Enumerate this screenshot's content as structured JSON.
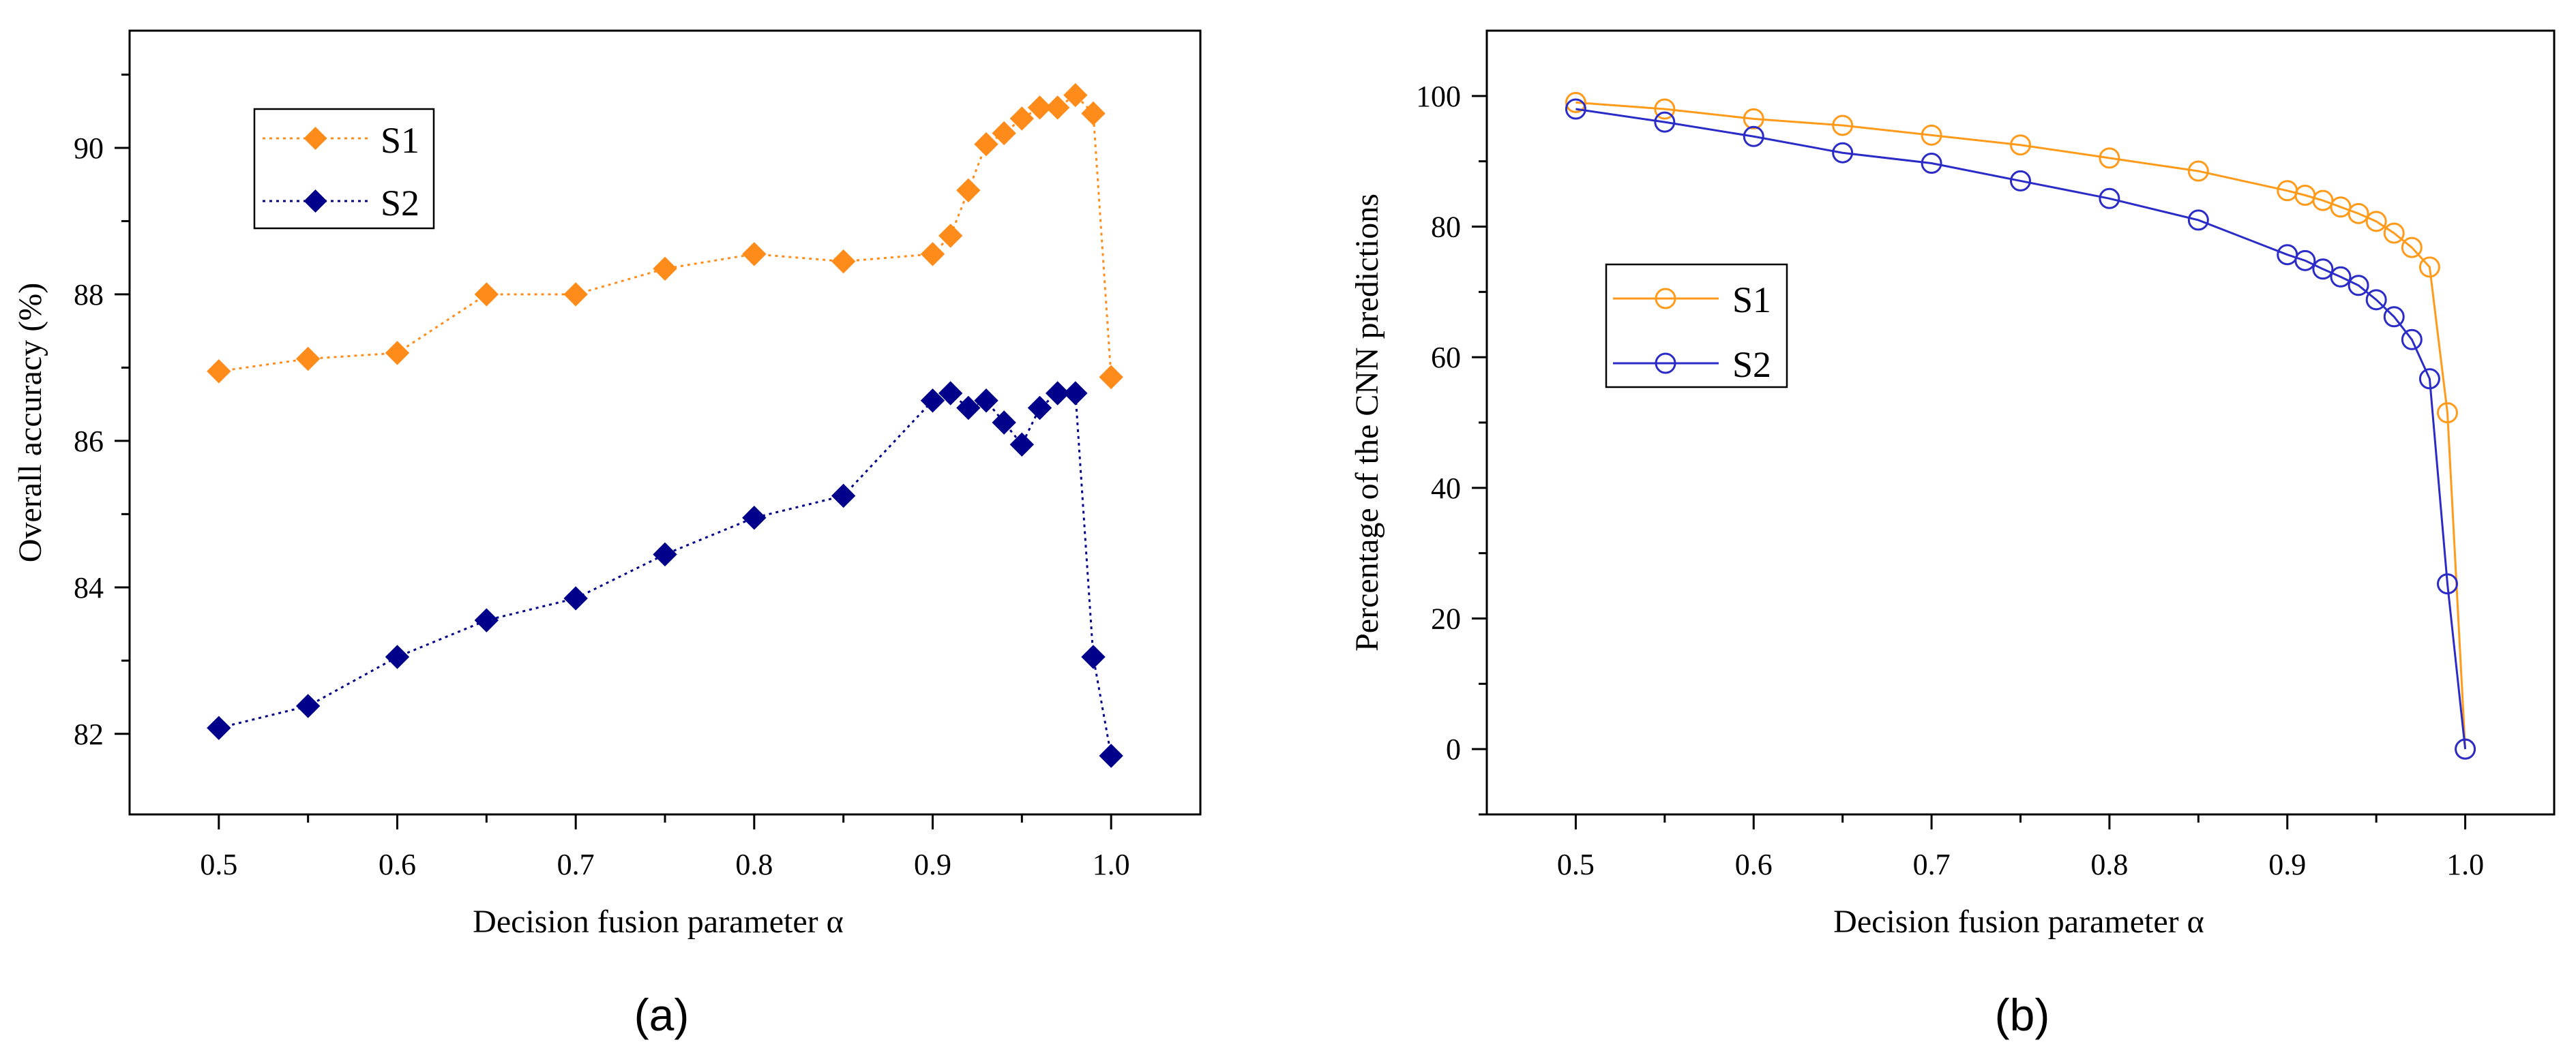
{
  "chart_data": [
    {
      "type": "scatter",
      "panel_label": "(a)",
      "xlabel": "Decision fusion parameter α",
      "ylabel": "Overall accuracy (%)",
      "xlim": [
        0.45,
        1.05
      ],
      "ylim": [
        80.9,
        91.6
      ],
      "xticks": [
        0.5,
        0.6,
        0.7,
        0.8,
        0.9,
        1.0
      ],
      "xtick_labels": [
        "0.5",
        "0.6",
        "0.7",
        "0.8",
        "0.9",
        "1.0"
      ],
      "xminor": [
        0.55,
        0.65,
        0.75,
        0.85,
        0.95
      ],
      "yticks": [
        82,
        84,
        86,
        88,
        90
      ],
      "ytick_labels": [
        "82",
        "84",
        "86",
        "88",
        "90"
      ],
      "yminor": [
        83,
        85,
        87,
        89,
        91
      ],
      "grid": false,
      "legend_position": "top-left",
      "x": [
        0.5,
        0.55,
        0.6,
        0.65,
        0.7,
        0.75,
        0.8,
        0.85,
        0.9,
        0.91,
        0.92,
        0.93,
        0.94,
        0.95,
        0.96,
        0.97,
        0.98,
        0.99,
        1.0
      ],
      "series": [
        {
          "name": "S1",
          "color": "#FF8C1A",
          "marker": "diamond",
          "line_style": "dotted",
          "values": [
            86.95,
            87.12,
            87.2,
            88.0,
            88.0,
            88.35,
            88.55,
            88.45,
            88.55,
            88.8,
            89.42,
            90.05,
            90.2,
            90.4,
            90.55,
            90.55,
            90.72,
            90.47,
            86.87
          ]
        },
        {
          "name": "S2",
          "color": "#00008B",
          "marker": "diamond",
          "line_style": "dotted",
          "values": [
            82.08,
            82.38,
            83.05,
            83.55,
            83.85,
            84.45,
            84.95,
            85.25,
            86.55,
            86.65,
            86.45,
            86.55,
            86.25,
            85.95,
            86.45,
            86.65,
            86.65,
            83.05,
            81.7
          ]
        }
      ]
    },
    {
      "type": "line",
      "panel_label": "(b)",
      "xlabel": "Decision fusion parameter α",
      "ylabel": "Percentage of the CNN predictions",
      "xlim": [
        0.45,
        1.05
      ],
      "ylim": [
        -10,
        110
      ],
      "xticks": [
        0.5,
        0.6,
        0.7,
        0.8,
        0.9,
        1.0
      ],
      "xtick_labels": [
        "0.5",
        "0.6",
        "0.7",
        "0.8",
        "0.9",
        "1.0"
      ],
      "xminor": [
        0.55,
        0.65,
        0.75,
        0.85,
        0.95
      ],
      "yticks": [
        0,
        20,
        40,
        60,
        80,
        100
      ],
      "ytick_labels": [
        "0",
        "20",
        "40",
        "60",
        "80",
        "100"
      ],
      "yminor": [
        -10,
        10,
        30,
        50,
        70,
        90
      ],
      "grid": false,
      "legend_position": "center-left",
      "x": [
        0.5,
        0.55,
        0.6,
        0.65,
        0.7,
        0.75,
        0.8,
        0.85,
        0.9,
        0.91,
        0.92,
        0.93,
        0.94,
        0.95,
        0.96,
        0.97,
        0.98,
        0.99,
        1.0
      ],
      "series": [
        {
          "name": "S1",
          "color": "#FF9A1A",
          "marker": "open-circle",
          "line_style": "solid",
          "values": [
            99.0,
            98.0,
            96.5,
            95.5,
            94.0,
            92.5,
            90.5,
            88.5,
            85.5,
            84.8,
            84.0,
            83.0,
            82.0,
            80.8,
            79.0,
            76.8,
            73.8,
            51.5,
            0
          ]
        },
        {
          "name": "S2",
          "color": "#2B2BC8",
          "marker": "open-circle",
          "line_style": "solid",
          "values": [
            98.0,
            96.0,
            93.8,
            91.3,
            89.7,
            87.0,
            84.3,
            81.0,
            75.7,
            74.8,
            73.5,
            72.3,
            71.0,
            68.8,
            66.2,
            62.7,
            56.7,
            25.3,
            0
          ]
        }
      ]
    }
  ]
}
